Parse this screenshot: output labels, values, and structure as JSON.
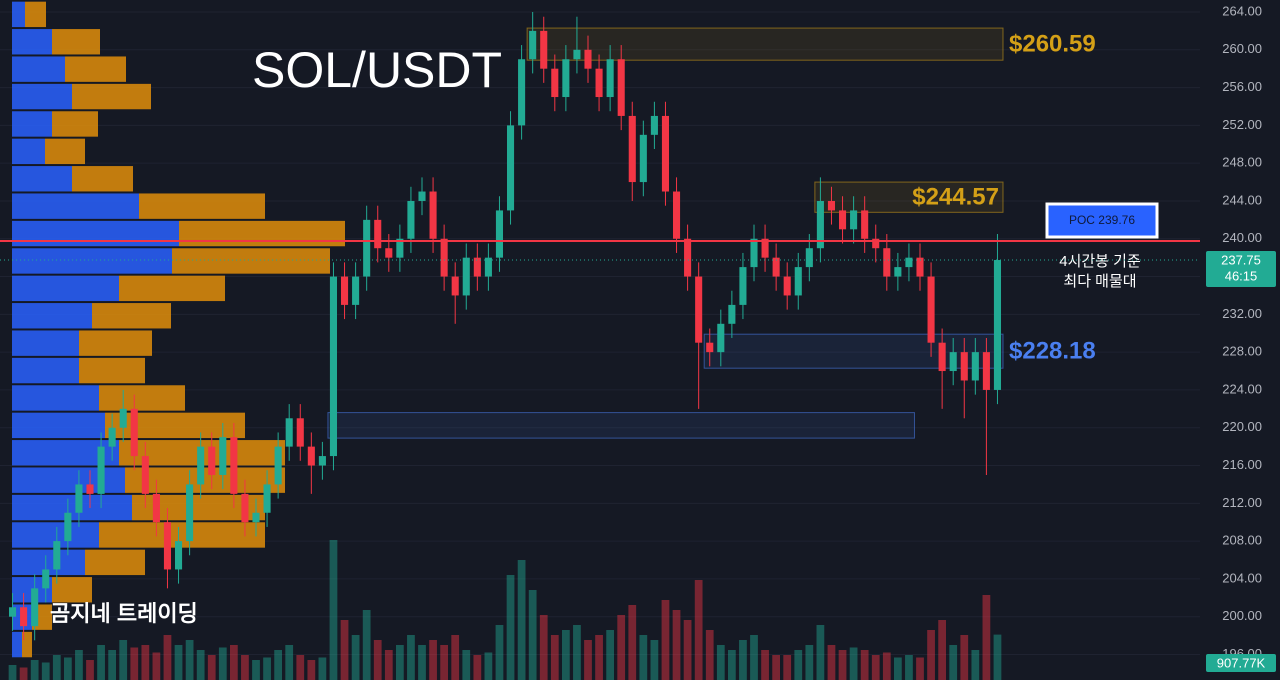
{
  "chart_data": {
    "type": "candlestick",
    "title": "SOL/USDT",
    "watermark": "곰지네 트레이딩",
    "open": [
      200,
      201,
      199,
      203,
      205,
      208,
      211,
      214,
      213,
      218,
      220,
      222,
      217,
      213,
      210,
      205,
      208,
      214,
      218,
      215,
      219,
      213,
      210,
      211,
      214,
      218,
      221,
      218,
      216,
      217,
      236,
      233,
      236,
      242,
      239,
      238,
      240,
      244,
      245,
      240,
      236,
      234,
      238,
      236,
      238,
      243,
      252,
      259,
      262,
      258,
      255,
      259,
      260,
      258,
      255,
      259,
      253,
      246,
      251,
      253,
      245,
      240,
      236,
      229,
      228,
      231,
      233,
      237,
      240,
      238,
      236,
      234,
      237,
      239,
      244,
      243,
      241,
      243,
      240,
      239,
      236,
      237,
      238,
      236,
      229,
      226,
      228,
      225,
      228,
      224
    ],
    "high": [
      202.5,
      202.5,
      204.5,
      206.5,
      209.5,
      212.5,
      215.5,
      215.5,
      219.5,
      221.5,
      224,
      223.5,
      218.5,
      214.5,
      211.5,
      209.5,
      215.5,
      219.5,
      219.5,
      220.5,
      220.5,
      214.5,
      212.5,
      215.5,
      219.5,
      222.5,
      222.5,
      219.5,
      218.5,
      237.5,
      237.5,
      237.5,
      243.5,
      243.5,
      240.5,
      241.5,
      245.5,
      246.5,
      246.5,
      241.5,
      237.5,
      239.5,
      239.5,
      239.5,
      244.5,
      253.5,
      260.5,
      264,
      263.5,
      259.5,
      260.5,
      263.5,
      261.5,
      259.5,
      260.5,
      260.5,
      254.5,
      252.5,
      254.5,
      254.5,
      246.5,
      241.5,
      237.5,
      230.5,
      232.5,
      234.5,
      238.5,
      241.5,
      241.5,
      239.5,
      237.5,
      238.5,
      240.5,
      246.5,
      245.5,
      244.5,
      244.5,
      244.5,
      241.5,
      240.5,
      238.5,
      239.5,
      239.5,
      237.5,
      230.5,
      229.5,
      229.5,
      229.5,
      229.5,
      240.5
    ],
    "low": [
      198.5,
      197.5,
      197.5,
      201.5,
      203.5,
      206.5,
      209.5,
      211.5,
      211.5,
      216.5,
      218.5,
      215.5,
      211.5,
      208.5,
      203,
      203.5,
      206.5,
      212.5,
      213.5,
      213.5,
      211.5,
      208.5,
      208.5,
      209.5,
      212.5,
      216.5,
      216.5,
      213,
      214.5,
      215.5,
      231.5,
      231.5,
      234.5,
      237.5,
      236.5,
      236.5,
      238.5,
      242.5,
      238.5,
      234.5,
      231,
      232.5,
      234.5,
      234.5,
      236.5,
      241.5,
      250.5,
      257.5,
      256.5,
      253.5,
      253.5,
      257.5,
      256.5,
      253.5,
      253.5,
      251.5,
      244,
      244.5,
      249.5,
      243.5,
      238.5,
      234.5,
      222,
      226.5,
      226.5,
      229.5,
      231.5,
      235.5,
      236.5,
      234.5,
      232.5,
      232.5,
      235.5,
      237.5,
      241.5,
      239.5,
      239.5,
      238.5,
      237.5,
      234.5,
      234.5,
      235.5,
      234.5,
      227.5,
      222,
      224.5,
      221,
      223.5,
      215,
      222.5
    ],
    "close": [
      201,
      199,
      203,
      205,
      208,
      211,
      214,
      213,
      218,
      220,
      222,
      217,
      213,
      210,
      205,
      208,
      214,
      218,
      215,
      219,
      213,
      210,
      211,
      214,
      218,
      221,
      218,
      216,
      217,
      236,
      233,
      236,
      242,
      239,
      238,
      240,
      244,
      245,
      240,
      236,
      234,
      238,
      236,
      238,
      243,
      252,
      259,
      262,
      258,
      255,
      259,
      260,
      258,
      255,
      259,
      253,
      246,
      251,
      253,
      245,
      240,
      236,
      229,
      228,
      231,
      233,
      237,
      240,
      238,
      236,
      234,
      237,
      239,
      244,
      243,
      241,
      243,
      240,
      239,
      236,
      237,
      238,
      236,
      229,
      226,
      228,
      225,
      228,
      224,
      237.75
    ],
    "volume": [
      300,
      250,
      400,
      350,
      500,
      450,
      600,
      400,
      700,
      600,
      800,
      650,
      700,
      550,
      900,
      700,
      800,
      600,
      500,
      650,
      700,
      500,
      400,
      450,
      600,
      700,
      500,
      400,
      450,
      2800,
      1200,
      900,
      1400,
      800,
      600,
      700,
      900,
      700,
      800,
      700,
      900,
      600,
      500,
      550,
      1100,
      2100,
      2400,
      1800,
      1300,
      900,
      1000,
      1100,
      800,
      900,
      1000,
      1300,
      1500,
      900,
      800,
      1600,
      1400,
      1200,
      2000,
      1000,
      700,
      600,
      800,
      900,
      600,
      500,
      500,
      600,
      700,
      1100,
      700,
      600,
      650,
      600,
      500,
      550,
      450,
      500,
      450,
      1000,
      1200,
      700,
      900,
      600,
      1700,
      907.77
    ],
    "volume_label": "907.77K",
    "vlim": [
      0,
      3000
    ],
    "countdown": "46:15",
    "colors": {
      "up": "#22ab94",
      "down": "#f23645"
    },
    "ylim": [
      193.3,
      265.27
    ],
    "yticks": [
      {
        "value": 196,
        "label": "196.00"
      },
      {
        "value": 200,
        "label": "200.00"
      },
      {
        "value": 204,
        "label": "204.00"
      },
      {
        "value": 208,
        "label": "208.00"
      },
      {
        "value": 212,
        "label": "212.00"
      },
      {
        "value": 216,
        "label": "216.00"
      },
      {
        "value": 220,
        "label": "220.00"
      },
      {
        "value": 224,
        "label": "224.00"
      },
      {
        "value": 228,
        "label": "228.00"
      },
      {
        "value": 232,
        "label": "232.00"
      },
      {
        "value": 236,
        "label": "236.00"
      },
      {
        "value": 240,
        "label": "240.00"
      },
      {
        "value": 244,
        "label": "244.00"
      },
      {
        "value": 248,
        "label": "248.00"
      },
      {
        "value": 252,
        "label": "252.00"
      },
      {
        "value": 256,
        "label": "256.00"
      },
      {
        "value": 260,
        "label": "260.00"
      },
      {
        "value": 264,
        "label": "264.00"
      }
    ],
    "grid": true,
    "profile": {
      "bins": [
        265.2,
        262.3,
        259.4,
        256.5,
        253.6,
        250.7,
        247.8,
        244.9,
        242.0,
        239.1,
        236.2,
        233.3,
        230.4,
        227.5,
        224.6,
        221.7,
        218.8,
        215.9,
        213.0,
        210.1,
        207.2,
        204.3,
        201.4,
        198.5,
        195.6
      ],
      "series": [
        {
          "color": "#2962ff",
          "values": [
            13,
            40,
            53,
            60,
            40,
            33,
            60,
            127,
            167,
            160,
            107,
            80,
            67,
            67,
            87,
            93,
            107,
            113,
            120,
            87,
            73,
            40,
            20,
            10
          ]
        },
        {
          "color": "#e08e0b",
          "values": [
            21,
            48,
            61,
            79,
            46,
            40,
            61,
            126,
            166,
            158,
            106,
            79,
            73,
            66,
            86,
            140,
            166,
            160,
            133,
            166,
            60,
            40,
            20,
            10
          ]
        }
      ]
    },
    "zones": [
      {
        "label": {
          "value": 260.59,
          "label": "$260.59"
        },
        "top": 262.3,
        "bottom": 258.9,
        "start": 47,
        "end": 90,
        "color": "#d4a017"
      },
      {
        "label": {
          "value": 244.57,
          "label": "$244.57"
        },
        "top": 246.0,
        "bottom": 242.8,
        "start": 73,
        "end": 90,
        "color": "#d4a017"
      },
      {
        "label": {
          "value": 228.18,
          "label": "$228.18"
        },
        "top": 229.9,
        "bottom": 226.3,
        "start": 63,
        "end": 90,
        "color": "#4a7ff0"
      },
      {
        "top": 221.6,
        "bottom": 218.9,
        "start": 29,
        "end": 82,
        "color": "#4a7ff0"
      }
    ],
    "poc": {
      "value": 239.76,
      "label": "POC 239.76",
      "color": "#f23645"
    },
    "poc_note": [
      "4시간봉 기준",
      "최다 매물대"
    ]
  }
}
